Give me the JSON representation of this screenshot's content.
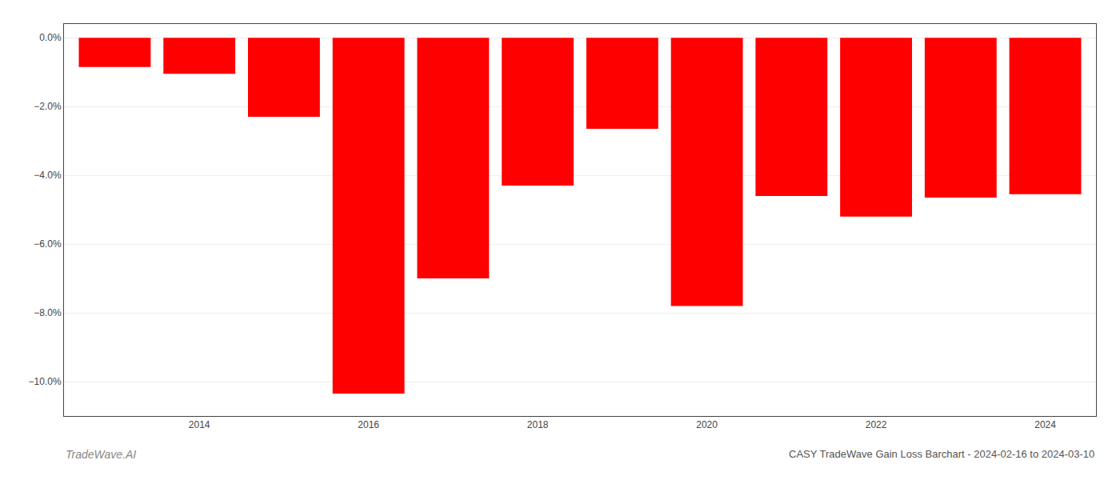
{
  "chart_data": {
    "type": "bar",
    "title": "CASY TradeWave Gain Loss Barchart - 2024-02-16 to 2024-03-10",
    "annotations": [
      "TradeWave.AI"
    ],
    "x": [
      2013,
      2014,
      2015,
      2016,
      2017,
      2018,
      2019,
      2020,
      2021,
      2022,
      2023,
      2024
    ],
    "values": [
      -0.85,
      -1.05,
      -2.3,
      -10.35,
      -7.0,
      -4.3,
      -2.65,
      -7.8,
      -4.6,
      -5.2,
      -4.65,
      -4.55
    ],
    "color": "#ff0000",
    "xlim": [
      2012.4,
      2024.6
    ],
    "xticks": [
      2014,
      2016,
      2018,
      2020,
      2022,
      2024
    ],
    "ylim": [
      -11.0,
      0.4
    ],
    "yticks": [
      {
        "value": 0.0,
        "label": "0.0%"
      },
      {
        "value": -2.0,
        "label": "−2.0%"
      },
      {
        "value": -4.0,
        "label": "−4.0%"
      },
      {
        "value": -6.0,
        "label": "−6.0%"
      },
      {
        "value": -8.0,
        "label": "−8.0%"
      },
      {
        "value": -10.0,
        "label": "−10.0%"
      }
    ],
    "grid": true
  }
}
